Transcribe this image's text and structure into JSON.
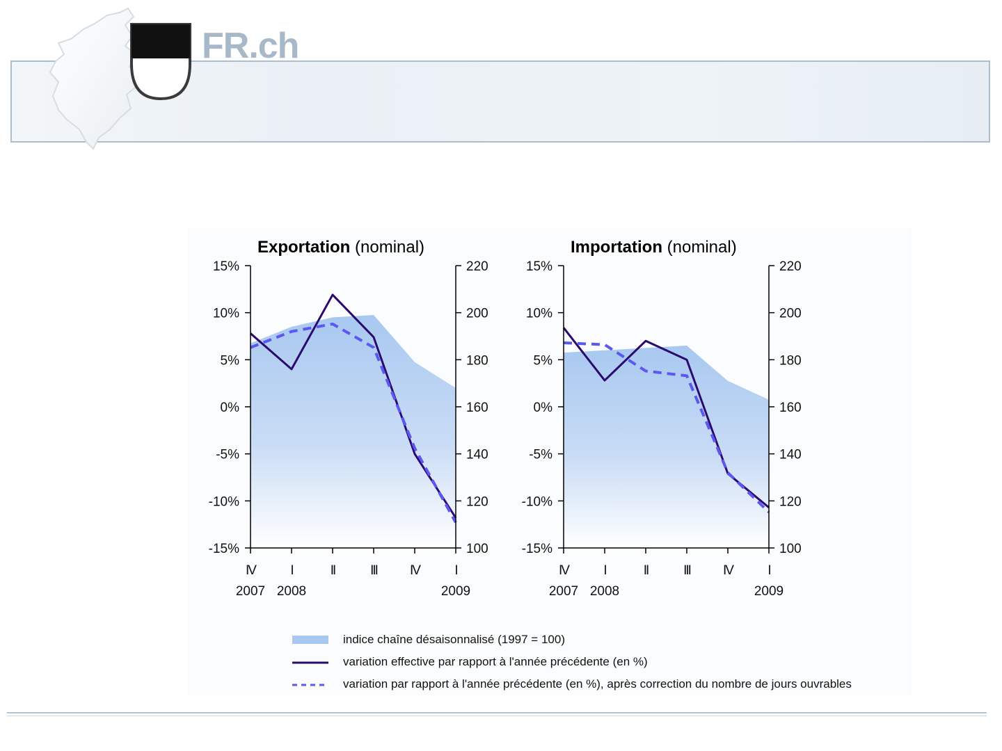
{
  "brand": {
    "logo_text": "FR.ch"
  },
  "charts": [
    {
      "title_bold": "Exportation",
      "title_rest": " (nominal)"
    },
    {
      "title_bold": "Importation",
      "title_rest": " (nominal)"
    }
  ],
  "legend": {
    "area_label": "indice chaîne désaisonnalisé (1997 = 100)",
    "solid_label": "variation effective par rapport à l'année précédente (en %)",
    "dashed_label": "variation par rapport à l'année précédente (en %), après correction du nombre de jours ouvrables"
  },
  "colors": {
    "area": "#a8c8f0",
    "solid": "#2a0a6e",
    "dashed": "#5b57f0",
    "axis": "#000000"
  },
  "chart_data": [
    {
      "type": "line",
      "title": "Exportation (nominal)",
      "x_quarter_labels": [
        "IV",
        "I",
        "II",
        "III",
        "IV",
        "I"
      ],
      "x_year_labels": [
        "2007",
        "2008",
        "",
        "",
        "",
        "2009"
      ],
      "y_left_ticks": [
        "15%",
        "10%",
        "5%",
        "0%",
        "-5%",
        "-10%",
        "-15%"
      ],
      "y_left_range": [
        -15,
        15
      ],
      "y_right_ticks": [
        "220",
        "200",
        "180",
        "160",
        "140",
        "120",
        "100"
      ],
      "y_right_range": [
        100,
        220
      ],
      "series": [
        {
          "name": "indice chaîne désaisonnalisé (1997 = 100)",
          "kind": "area",
          "axis": "right",
          "values": [
            187,
            194,
            198,
            199,
            179,
            168
          ]
        },
        {
          "name": "variation effective par rapport à l'année précédente (en %)",
          "kind": "solid",
          "axis": "left",
          "values": [
            7.8,
            4.0,
            11.9,
            7.4,
            -5.0,
            -11.8
          ]
        },
        {
          "name": "variation par rapport à l'année précédente (en %), après correction du nombre de jours ouvrables",
          "kind": "dashed",
          "axis": "left",
          "values": [
            6.3,
            8.0,
            8.8,
            6.3,
            -4.4,
            -12.3
          ]
        }
      ]
    },
    {
      "type": "line",
      "title": "Importation (nominal)",
      "x_quarter_labels": [
        "IV",
        "I",
        "II",
        "III",
        "IV",
        "I"
      ],
      "x_year_labels": [
        "2007",
        "2008",
        "",
        "",
        "",
        "2009"
      ],
      "y_left_ticks": [
        "15%",
        "10%",
        "5%",
        "0%",
        "-5%",
        "-10%",
        "-15%"
      ],
      "y_left_range": [
        -15,
        15
      ],
      "y_right_ticks": [
        "220",
        "200",
        "180",
        "160",
        "140",
        "120",
        "100"
      ],
      "y_right_range": [
        100,
        220
      ],
      "series": [
        {
          "name": "indice chaîne désaisonnalisé (1997 = 100)",
          "kind": "area",
          "axis": "right",
          "values": [
            183,
            184,
            185,
            186,
            171,
            163
          ]
        },
        {
          "name": "variation effective par rapport à l'année précédente (en %)",
          "kind": "solid",
          "axis": "left",
          "values": [
            8.4,
            2.8,
            7.0,
            5.0,
            -7.1,
            -10.7
          ]
        },
        {
          "name": "variation par rapport à l'année précédente (en %), après correction du nombre de jours ouvrables",
          "kind": "dashed",
          "axis": "left",
          "values": [
            6.8,
            6.6,
            3.8,
            3.3,
            -7.0,
            -11.2
          ]
        }
      ]
    }
  ]
}
